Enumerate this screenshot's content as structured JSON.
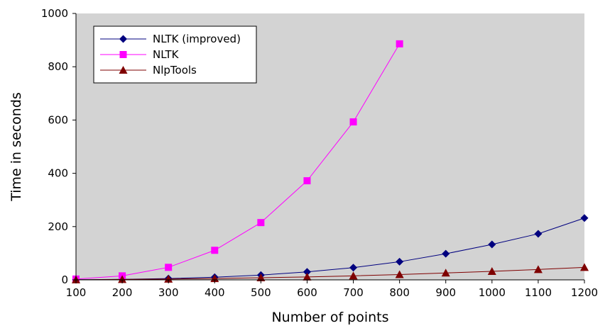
{
  "chart_data": {
    "type": "line",
    "title": "",
    "xlabel": "Number of points",
    "ylabel": "Time in seconds",
    "x": [
      100,
      200,
      300,
      400,
      500,
      600,
      700,
      800,
      900,
      1000,
      1100,
      1200
    ],
    "xlim": [
      100,
      1200
    ],
    "ylim": [
      0,
      1000
    ],
    "xticks": [
      "100",
      "200",
      "300",
      "400",
      "500",
      "600",
      "700",
      "800",
      "900",
      "1000",
      "1100",
      "1200"
    ],
    "yticks": [
      "0",
      "200",
      "400",
      "600",
      "800",
      "1000"
    ],
    "grid": false,
    "legend_position": "top-left",
    "plot_background": "#d3d3d3",
    "series": [
      {
        "name": "NLTK (improved)",
        "color": "#00007f",
        "marker": "diamond",
        "values": [
          0.5,
          2,
          5,
          10,
          18,
          30,
          46,
          68,
          98,
          133,
          173,
          232
        ]
      },
      {
        "name": "NLTK",
        "color": "#ff00ff",
        "marker": "square",
        "values": [
          3,
          15,
          47,
          111,
          215,
          372,
          593,
          886,
          null,
          null,
          null,
          null
        ]
      },
      {
        "name": "NlpTools",
        "color": "#7f0000",
        "marker": "triangle",
        "values": [
          0.3,
          1.5,
          3,
          5,
          8,
          11,
          15,
          20,
          26,
          32,
          39,
          47
        ]
      }
    ]
  }
}
